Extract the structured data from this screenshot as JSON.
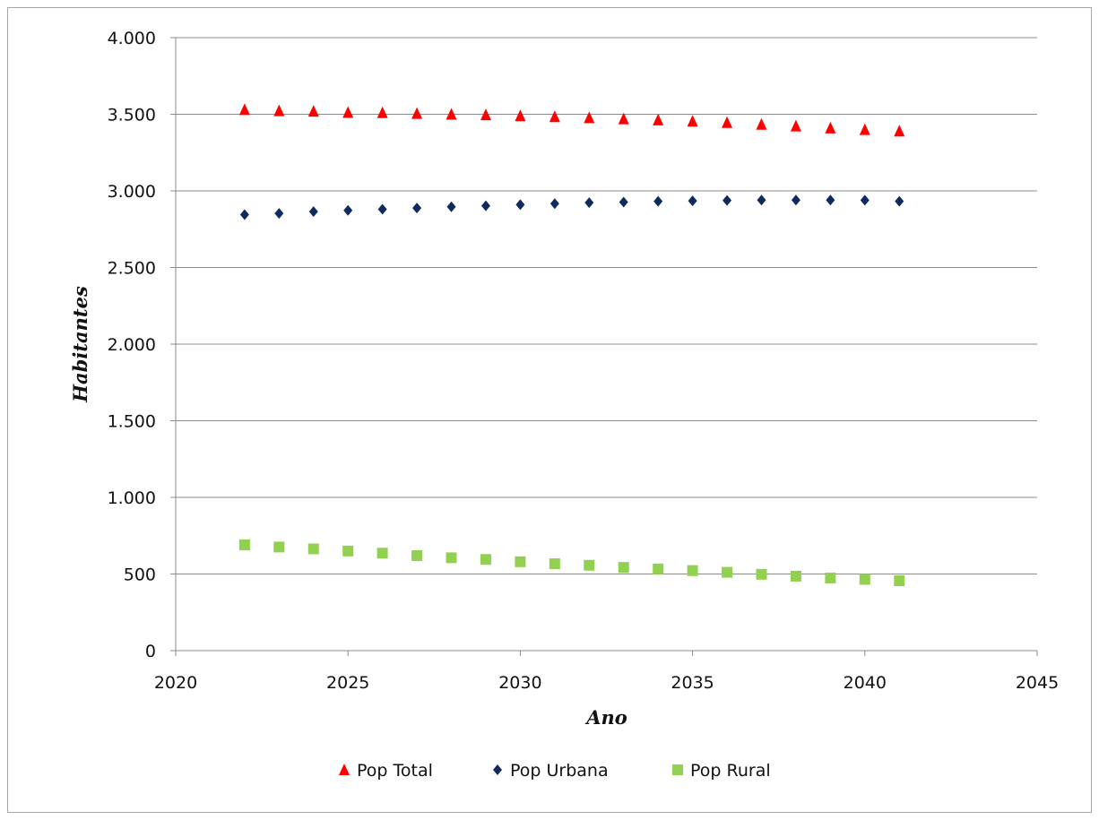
{
  "chart_data": {
    "type": "scatter",
    "xlabel": "Ano",
    "ylabel": "Habitantes",
    "xlim": [
      2020,
      2045
    ],
    "ylim": [
      0,
      4000
    ],
    "xticks": [
      2020,
      2025,
      2030,
      2035,
      2040,
      2045
    ],
    "yticks": [
      0,
      500,
      1000,
      1500,
      2000,
      2500,
      3000,
      3500,
      4000
    ],
    "xtick_labels": [
      "2020",
      "2025",
      "2030",
      "2035",
      "2040",
      "2045"
    ],
    "ytick_labels": [
      "0",
      "500",
      "1.000",
      "1.500",
      "2.000",
      "2.500",
      "3.000",
      "3.500",
      "4.000"
    ],
    "grid": "horizontal",
    "legend_position": "bottom",
    "x": [
      2022,
      2023,
      2024,
      2025,
      2026,
      2027,
      2028,
      2029,
      2030,
      2031,
      2032,
      2033,
      2034,
      2035,
      2036,
      2037,
      2038,
      2039,
      2040,
      2041
    ],
    "series": [
      {
        "name": "Pop Total",
        "marker": "triangle",
        "color": "#ff0000",
        "values": [
          3530,
          3523,
          3520,
          3512,
          3510,
          3505,
          3500,
          3496,
          3490,
          3484,
          3477,
          3470,
          3463,
          3455,
          3446,
          3434,
          3423,
          3410,
          3400,
          3390
        ]
      },
      {
        "name": "Pop Urbana",
        "marker": "diamond",
        "color": "#0f2a5f",
        "values": [
          2845,
          2853,
          2865,
          2873,
          2880,
          2888,
          2896,
          2903,
          2910,
          2917,
          2923,
          2927,
          2932,
          2935,
          2938,
          2940,
          2940,
          2940,
          2939,
          2932
        ]
      },
      {
        "name": "Pop Rural",
        "marker": "square",
        "color": "#92d050",
        "values": [
          690,
          676,
          664,
          650,
          636,
          620,
          606,
          595,
          580,
          567,
          557,
          543,
          533,
          522,
          511,
          498,
          486,
          474,
          465,
          456
        ]
      }
    ]
  }
}
